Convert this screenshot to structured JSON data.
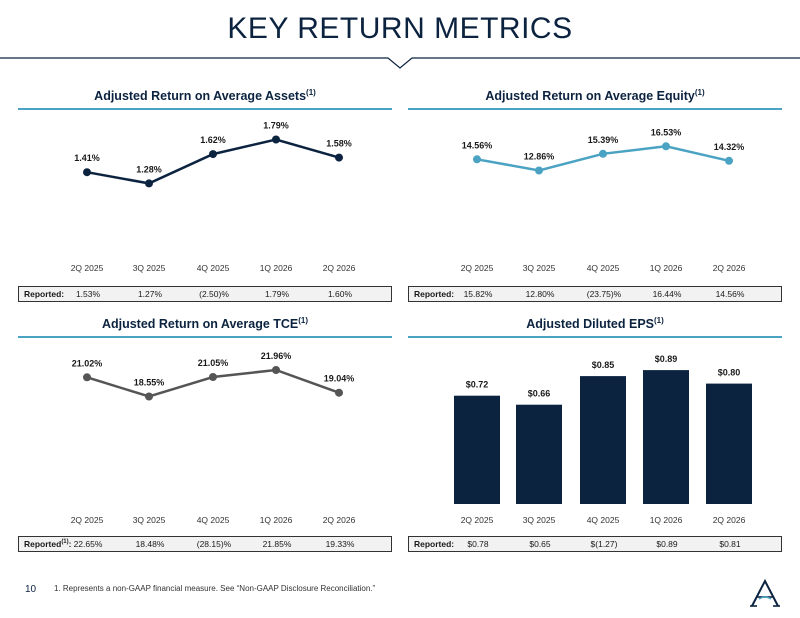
{
  "title": "KEY RETURN METRICS",
  "page_number": "10",
  "footnote": "1. Represents a non-GAAP financial measure. See “Non-GAAP Disclosure Reconciliation.”",
  "colors": {
    "navy": "#0c2340",
    "teal": "#4ba3c3",
    "gray": "#555555",
    "rule": "#4ba3c3"
  },
  "chart_data": [
    {
      "type": "line",
      "title": "Adjusted Return on Average Assets",
      "title_sup": "(1)",
      "categories": [
        "2Q 2025",
        "3Q 2025",
        "4Q 2025",
        "1Q 2026",
        "2Q 2026"
      ],
      "values": [
        1.41,
        1.28,
        1.62,
        1.79,
        1.58
      ],
      "labels": [
        "1.41%",
        "1.28%",
        "1.62%",
        "1.79%",
        "1.58%"
      ],
      "ylim": [
        0.6,
        1.9
      ],
      "color": "#0c2340",
      "reported_label": "Reported:",
      "reported_sup": "",
      "reported": [
        "1.53%",
        "1.27%",
        "(2.50)%",
        "1.79%",
        "1.60%"
      ]
    },
    {
      "type": "line",
      "title": "Adjusted Return on Average Equity",
      "title_sup": "(1)",
      "categories": [
        "2Q 2025",
        "3Q 2025",
        "4Q 2025",
        "1Q 2026",
        "2Q 2026"
      ],
      "values": [
        14.56,
        12.86,
        15.39,
        16.53,
        14.32
      ],
      "labels": [
        "14.56%",
        "12.86%",
        "15.39%",
        "16.53%",
        "14.32%"
      ],
      "ylim": [
        2,
        19
      ],
      "color": "#4ba3c3",
      "reported_label": "Reported:",
      "reported_sup": "",
      "reported": [
        "15.82%",
        "12.80%",
        "(23.75)%",
        "16.44%",
        "14.56%"
      ]
    },
    {
      "type": "line",
      "title": "Adjusted Return on Average TCE",
      "title_sup": "(1)",
      "categories": [
        "2Q 2025",
        "3Q 2025",
        "4Q 2025",
        "1Q 2026",
        "2Q 2026"
      ],
      "values": [
        21.02,
        18.55,
        21.05,
        21.96,
        19.04
      ],
      "labels": [
        "21.02%",
        "18.55%",
        "21.05%",
        "21.96%",
        "19.04%"
      ],
      "ylim": [
        6,
        23.5
      ],
      "color": "#555555",
      "reported_label": "Reported",
      "reported_sup": "(1)",
      "reported_colon": ":",
      "reported": [
        "22.65%",
        "18.48%",
        "(28.15)%",
        "21.85%",
        "19.33%"
      ]
    },
    {
      "type": "bar",
      "title": "Adjusted Diluted EPS",
      "title_sup": "(1)",
      "categories": [
        "2Q 2025",
        "3Q 2025",
        "4Q 2025",
        "1Q 2026",
        "2Q 2026"
      ],
      "values": [
        0.72,
        0.66,
        0.85,
        0.89,
        0.8
      ],
      "labels": [
        "$0.72",
        "$0.66",
        "$0.85",
        "$0.89",
        "$0.80"
      ],
      "ylim": [
        0,
        1.05
      ],
      "color": "#0c2340",
      "reported_label": "Reported:",
      "reported_sup": "",
      "reported": [
        "$0.78",
        "$0.65",
        "$(1.27)",
        "$0.89",
        "$0.81"
      ]
    }
  ]
}
